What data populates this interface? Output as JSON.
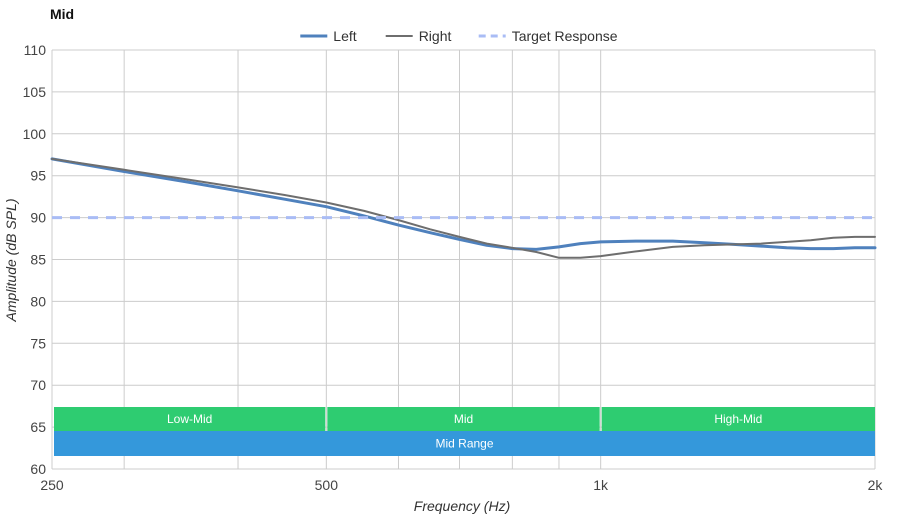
{
  "chart_data": {
    "type": "line",
    "title": "Mid",
    "xlabel": "Frequency (Hz)",
    "ylabel": "Amplitude (dB SPL)",
    "x_scale": "log",
    "xlim": [
      250,
      2000
    ],
    "ylim": [
      60,
      110
    ],
    "y_ticks": [
      60,
      65,
      70,
      75,
      80,
      85,
      90,
      95,
      100,
      105,
      110
    ],
    "x_ticks": [
      {
        "value": 250,
        "label": "250"
      },
      {
        "value": 500,
        "label": "500"
      },
      {
        "value": 1000,
        "label": "1k"
      },
      {
        "value": 2000,
        "label": "2k"
      }
    ],
    "x_grid": [
      250,
      300,
      400,
      500,
      600,
      700,
      800,
      900,
      1000,
      2000
    ],
    "grid": true,
    "legend_position": "top-center",
    "series": [
      {
        "name": "Left",
        "color": "#4f81bd",
        "style": "solid-thick",
        "x": [
          250,
          300,
          350,
          400,
          450,
          500,
          550,
          600,
          650,
          700,
          750,
          800,
          850,
          900,
          950,
          1000,
          1100,
          1200,
          1300,
          1400,
          1500,
          1600,
          1700,
          1800,
          1900,
          2000
        ],
        "y": [
          97.0,
          95.5,
          94.3,
          93.2,
          92.2,
          91.3,
          90.2,
          89.1,
          88.2,
          87.4,
          86.7,
          86.3,
          86.2,
          86.5,
          86.9,
          87.1,
          87.2,
          87.2,
          87.0,
          86.8,
          86.6,
          86.4,
          86.3,
          86.3,
          86.4,
          86.4
        ]
      },
      {
        "name": "Right",
        "color": "#6e6e6e",
        "style": "solid-thin",
        "x": [
          250,
          300,
          350,
          400,
          450,
          500,
          550,
          600,
          650,
          700,
          750,
          800,
          850,
          900,
          950,
          1000,
          1100,
          1200,
          1300,
          1400,
          1500,
          1600,
          1700,
          1800,
          1900,
          2000
        ],
        "y": [
          97.0,
          95.7,
          94.6,
          93.6,
          92.7,
          91.8,
          90.8,
          89.7,
          88.6,
          87.7,
          86.9,
          86.4,
          85.9,
          85.2,
          85.2,
          85.4,
          86.0,
          86.5,
          86.7,
          86.8,
          86.9,
          87.1,
          87.3,
          87.6,
          87.7,
          87.7
        ]
      },
      {
        "name": "Target Response",
        "color": "#a9bcf5",
        "style": "dashed",
        "x": [
          250,
          2000
        ],
        "y": [
          90,
          90
        ]
      }
    ],
    "bands": [
      {
        "label": "Low-Mid",
        "from": 250,
        "to": 500,
        "color": "#2ecc71",
        "row": 0
      },
      {
        "label": "Mid",
        "from": 500,
        "to": 1000,
        "color": "#2ecc71",
        "row": 0
      },
      {
        "label": "High-Mid",
        "from": 1000,
        "to": 2000,
        "color": "#2ecc71",
        "row": 0
      },
      {
        "label": "Mid Range",
        "from": 250,
        "to": 2000,
        "color": "#3498db",
        "row": 1
      }
    ]
  }
}
